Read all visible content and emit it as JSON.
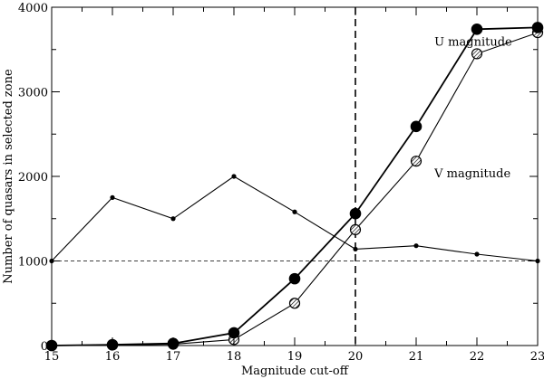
{
  "chart_data": {
    "type": "line",
    "title": "",
    "xlabel": "Magnitude cut-off",
    "ylabel": "Number of quasars in selected zone",
    "xlim": [
      15,
      23
    ],
    "ylim": [
      0,
      4000
    ],
    "x_ticks": [
      "15",
      "16",
      "17",
      "18",
      "19",
      "20",
      "21",
      "22",
      "23"
    ],
    "y_ticks": [
      "0",
      "1000",
      "2000",
      "3000",
      "4000"
    ],
    "grid": false,
    "series": [
      {
        "name": "U magnitude",
        "marker": "filled-circle",
        "x": [
          15,
          16,
          17,
          18,
          19,
          20,
          21,
          22,
          23
        ],
        "y": [
          0,
          10,
          25,
          150,
          790,
          1560,
          2590,
          3740,
          3760
        ]
      },
      {
        "name": "V magnitude",
        "marker": "hatched-circle",
        "x": [
          15,
          16,
          17,
          18,
          19,
          20,
          21,
          22,
          23
        ],
        "y": [
          0,
          5,
          15,
          70,
          500,
          1370,
          2180,
          3450,
          3700
        ]
      },
      {
        "name": "",
        "marker": "small-dot",
        "x": [
          15,
          16,
          17,
          18,
          19,
          20,
          21,
          22,
          23
        ],
        "y": [
          1000,
          1750,
          1500,
          2000,
          1580,
          1140,
          1180,
          1080,
          1000
        ]
      }
    ],
    "reference_lines": [
      {
        "orientation": "vertical",
        "value": 20,
        "style": "dashed"
      },
      {
        "orientation": "horizontal",
        "value": 1000,
        "style": "dashed"
      }
    ],
    "annotations": [
      {
        "text": "U magnitude",
        "x": 21.3,
        "y": 3590
      },
      {
        "text": "V magnitude",
        "x": 21.3,
        "y": 2030
      }
    ],
    "colors": {
      "line": "#000000",
      "background": "#ffffff"
    }
  }
}
